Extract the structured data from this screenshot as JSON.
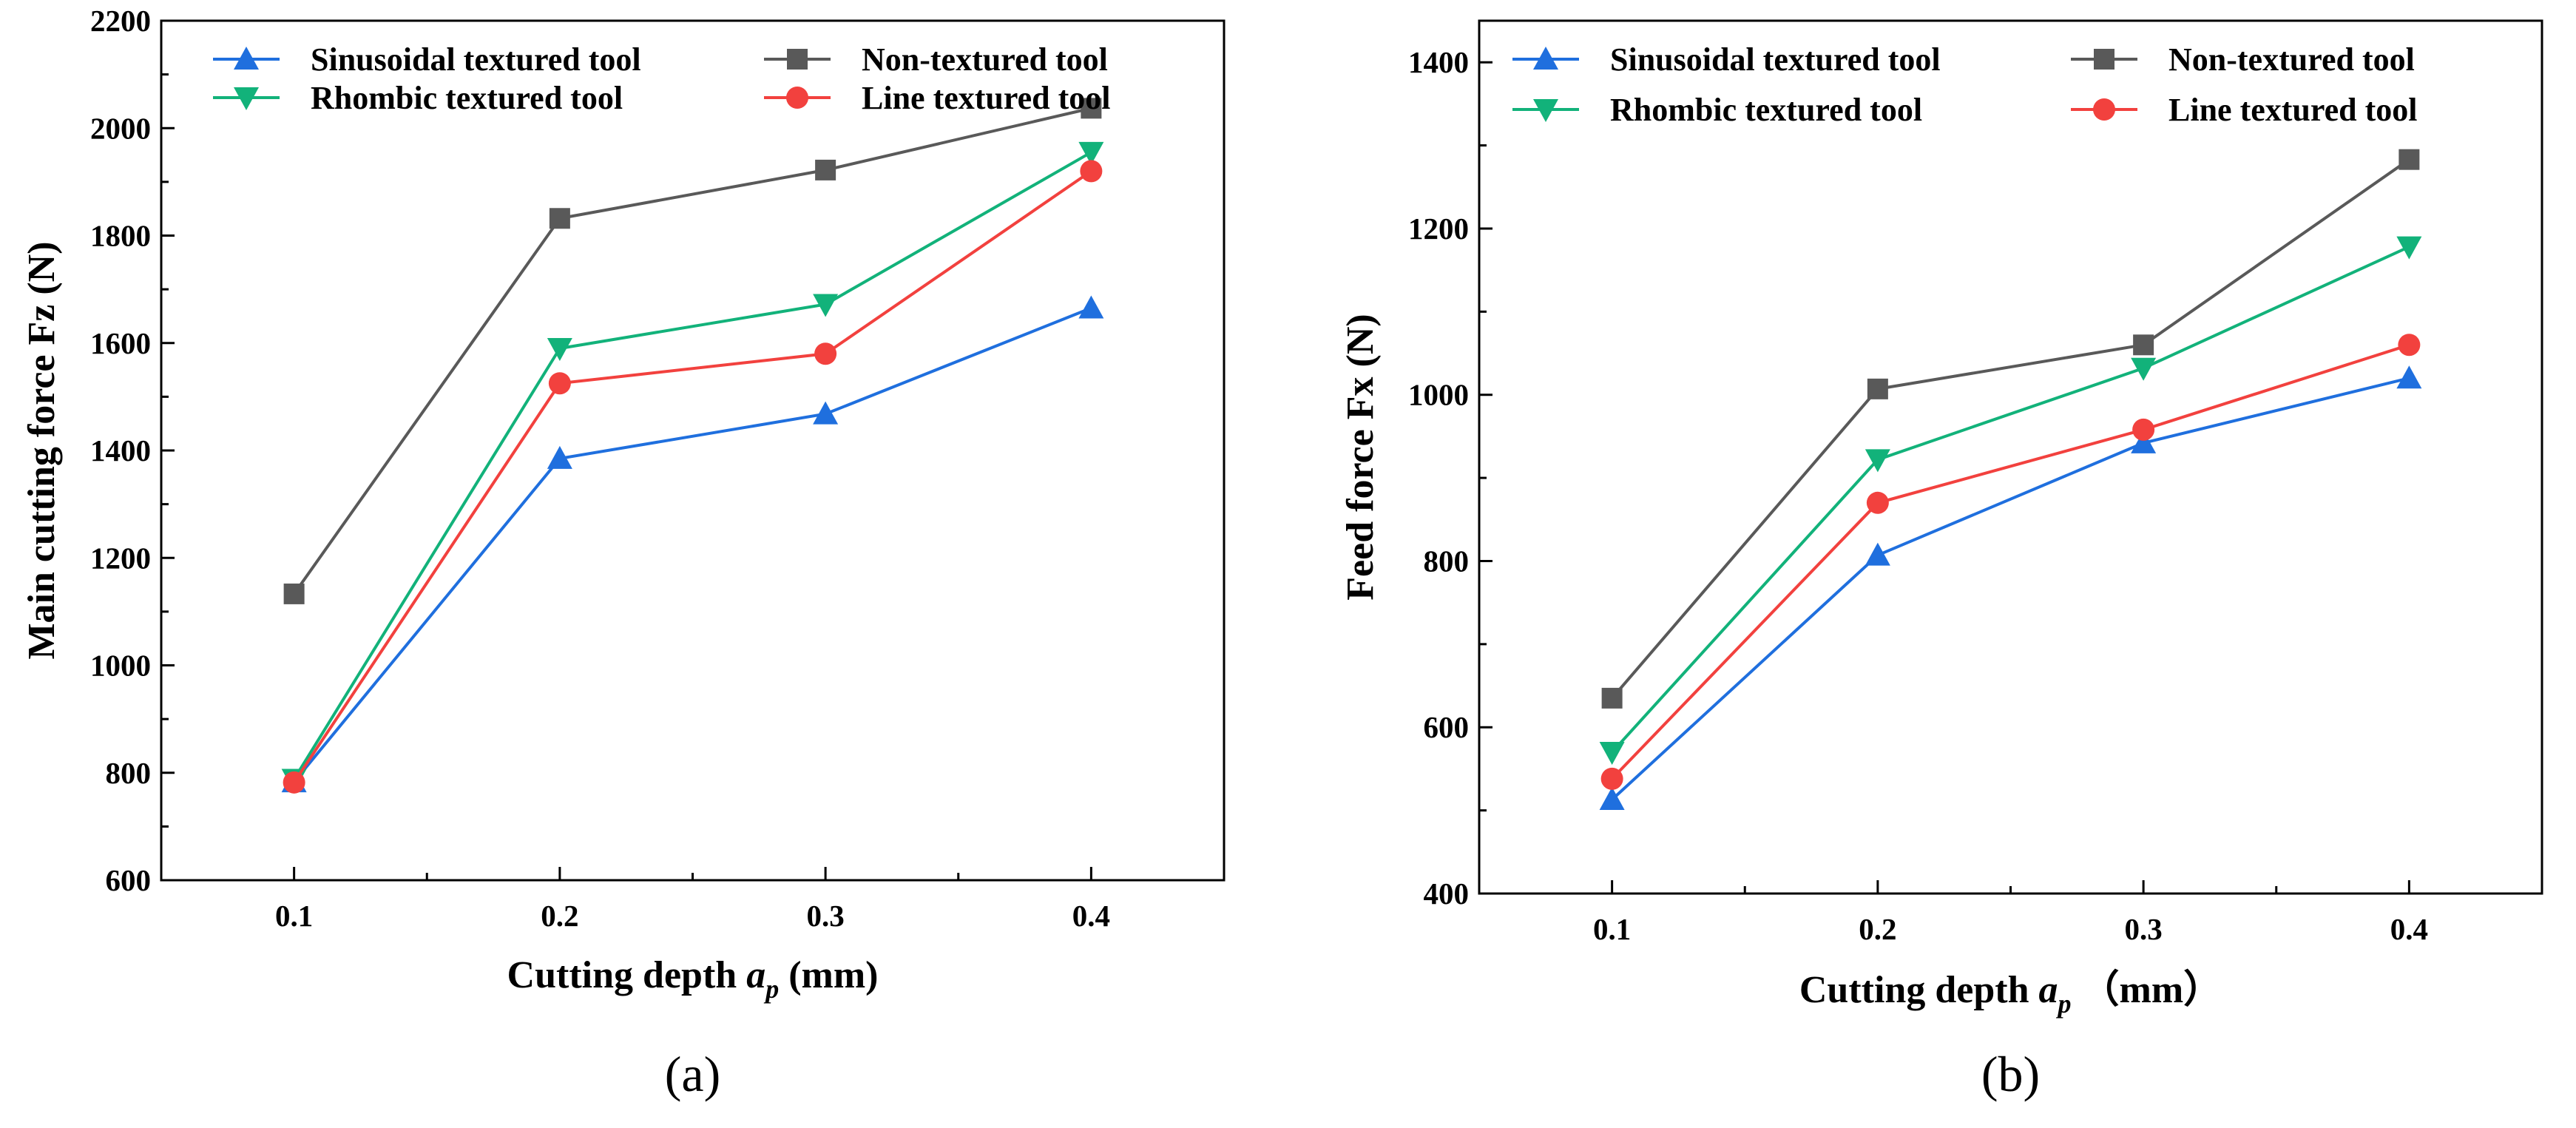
{
  "chart_data": [
    {
      "type": "line",
      "panel_label": "(a)",
      "x": [
        0.1,
        0.2,
        0.3,
        0.4
      ],
      "x_tick_labels": [
        "0.1",
        "0.2",
        "0.3",
        "0.4"
      ],
      "xlim": [
        0.05,
        0.45
      ],
      "ylim": [
        600,
        2200
      ],
      "y_ticks": [
        600,
        800,
        1000,
        1200,
        1400,
        1600,
        1800,
        2000,
        2200
      ],
      "y_tick_labels": [
        "600",
        "800",
        "1000",
        "1200",
        "1400",
        "1600",
        "1800",
        "2000",
        "2200"
      ],
      "xlabel_prefix": "Cutting depth ",
      "xlabel_var": "a",
      "xlabel_sub": "p",
      "xlabel_suffix": " (mm)",
      "ylabel": "Main cutting force Fz (N)",
      "legend_position": "top",
      "series": [
        {
          "name": "Sinusoidal textured tool",
          "color": "#1f6fde",
          "marker": "triangle-up",
          "values": [
            783,
            1385,
            1468,
            1665
          ]
        },
        {
          "name": "Non-textured tool",
          "color": "#595959",
          "marker": "square",
          "values": [
            1133,
            1832,
            1922,
            2037
          ]
        },
        {
          "name": "Rhombic textured tool",
          "color": "#12b27a",
          "marker": "triangle-down",
          "values": [
            788,
            1590,
            1672,
            1955
          ]
        },
        {
          "name": "Line textured tool",
          "color": "#f2413e",
          "marker": "circle",
          "values": [
            782,
            1525,
            1580,
            1920
          ]
        }
      ]
    },
    {
      "type": "line",
      "panel_label": "(b)",
      "x": [
        0.1,
        0.2,
        0.3,
        0.4
      ],
      "x_tick_labels": [
        "0.1",
        "0.2",
        "0.3",
        "0.4"
      ],
      "xlim": [
        0.05,
        0.45
      ],
      "ylim": [
        400,
        1450
      ],
      "y_ticks": [
        400,
        600,
        800,
        1000,
        1200,
        1400
      ],
      "y_tick_labels": [
        "400",
        "600",
        "800",
        "1000",
        "1200",
        "1400"
      ],
      "xlabel_prefix": "Cutting depth ",
      "xlabel_var": "a",
      "xlabel_sub": "p",
      "xlabel_suffix": " （mm）",
      "ylabel": "Feed force Fx (N)",
      "legend_position": "top",
      "series": [
        {
          "name": "Sinusoidal textured tool",
          "color": "#1f6fde",
          "marker": "triangle-up",
          "values": [
            513,
            807,
            942,
            1020
          ]
        },
        {
          "name": "Non-textured tool",
          "color": "#595959",
          "marker": "square",
          "values": [
            635,
            1007,
            1060,
            1283
          ]
        },
        {
          "name": "Rhombic textured tool",
          "color": "#12b27a",
          "marker": "triangle-down",
          "values": [
            570,
            922,
            1032,
            1178
          ]
        },
        {
          "name": "Line textured tool",
          "color": "#f2413e",
          "marker": "circle",
          "values": [
            538,
            870,
            958,
            1060
          ]
        }
      ]
    }
  ]
}
